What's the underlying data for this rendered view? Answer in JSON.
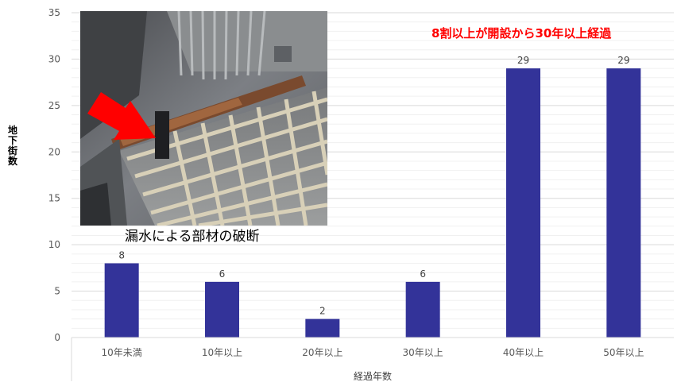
{
  "chart_data": {
    "type": "bar",
    "categories": [
      "10年未満",
      "10年以上",
      "20年以上",
      "30年以上",
      "40年以上",
      "50年以上"
    ],
    "values": [
      8,
      6,
      2,
      6,
      29,
      29
    ],
    "xlabel": "経過年数",
    "ylabel": "地下街数",
    "ylim": [
      0,
      35
    ],
    "yticks": [
      0,
      5,
      10,
      15,
      20,
      25,
      30,
      35
    ],
    "grid": true,
    "data_labels": true,
    "bar_color": "#333399",
    "annotation": {
      "text": "8割以上が開設から30年以上経過",
      "color": "#ff0000"
    },
    "photo_caption": "漏水による部材の破断",
    "photo_arrow_color": "#ff0000"
  }
}
